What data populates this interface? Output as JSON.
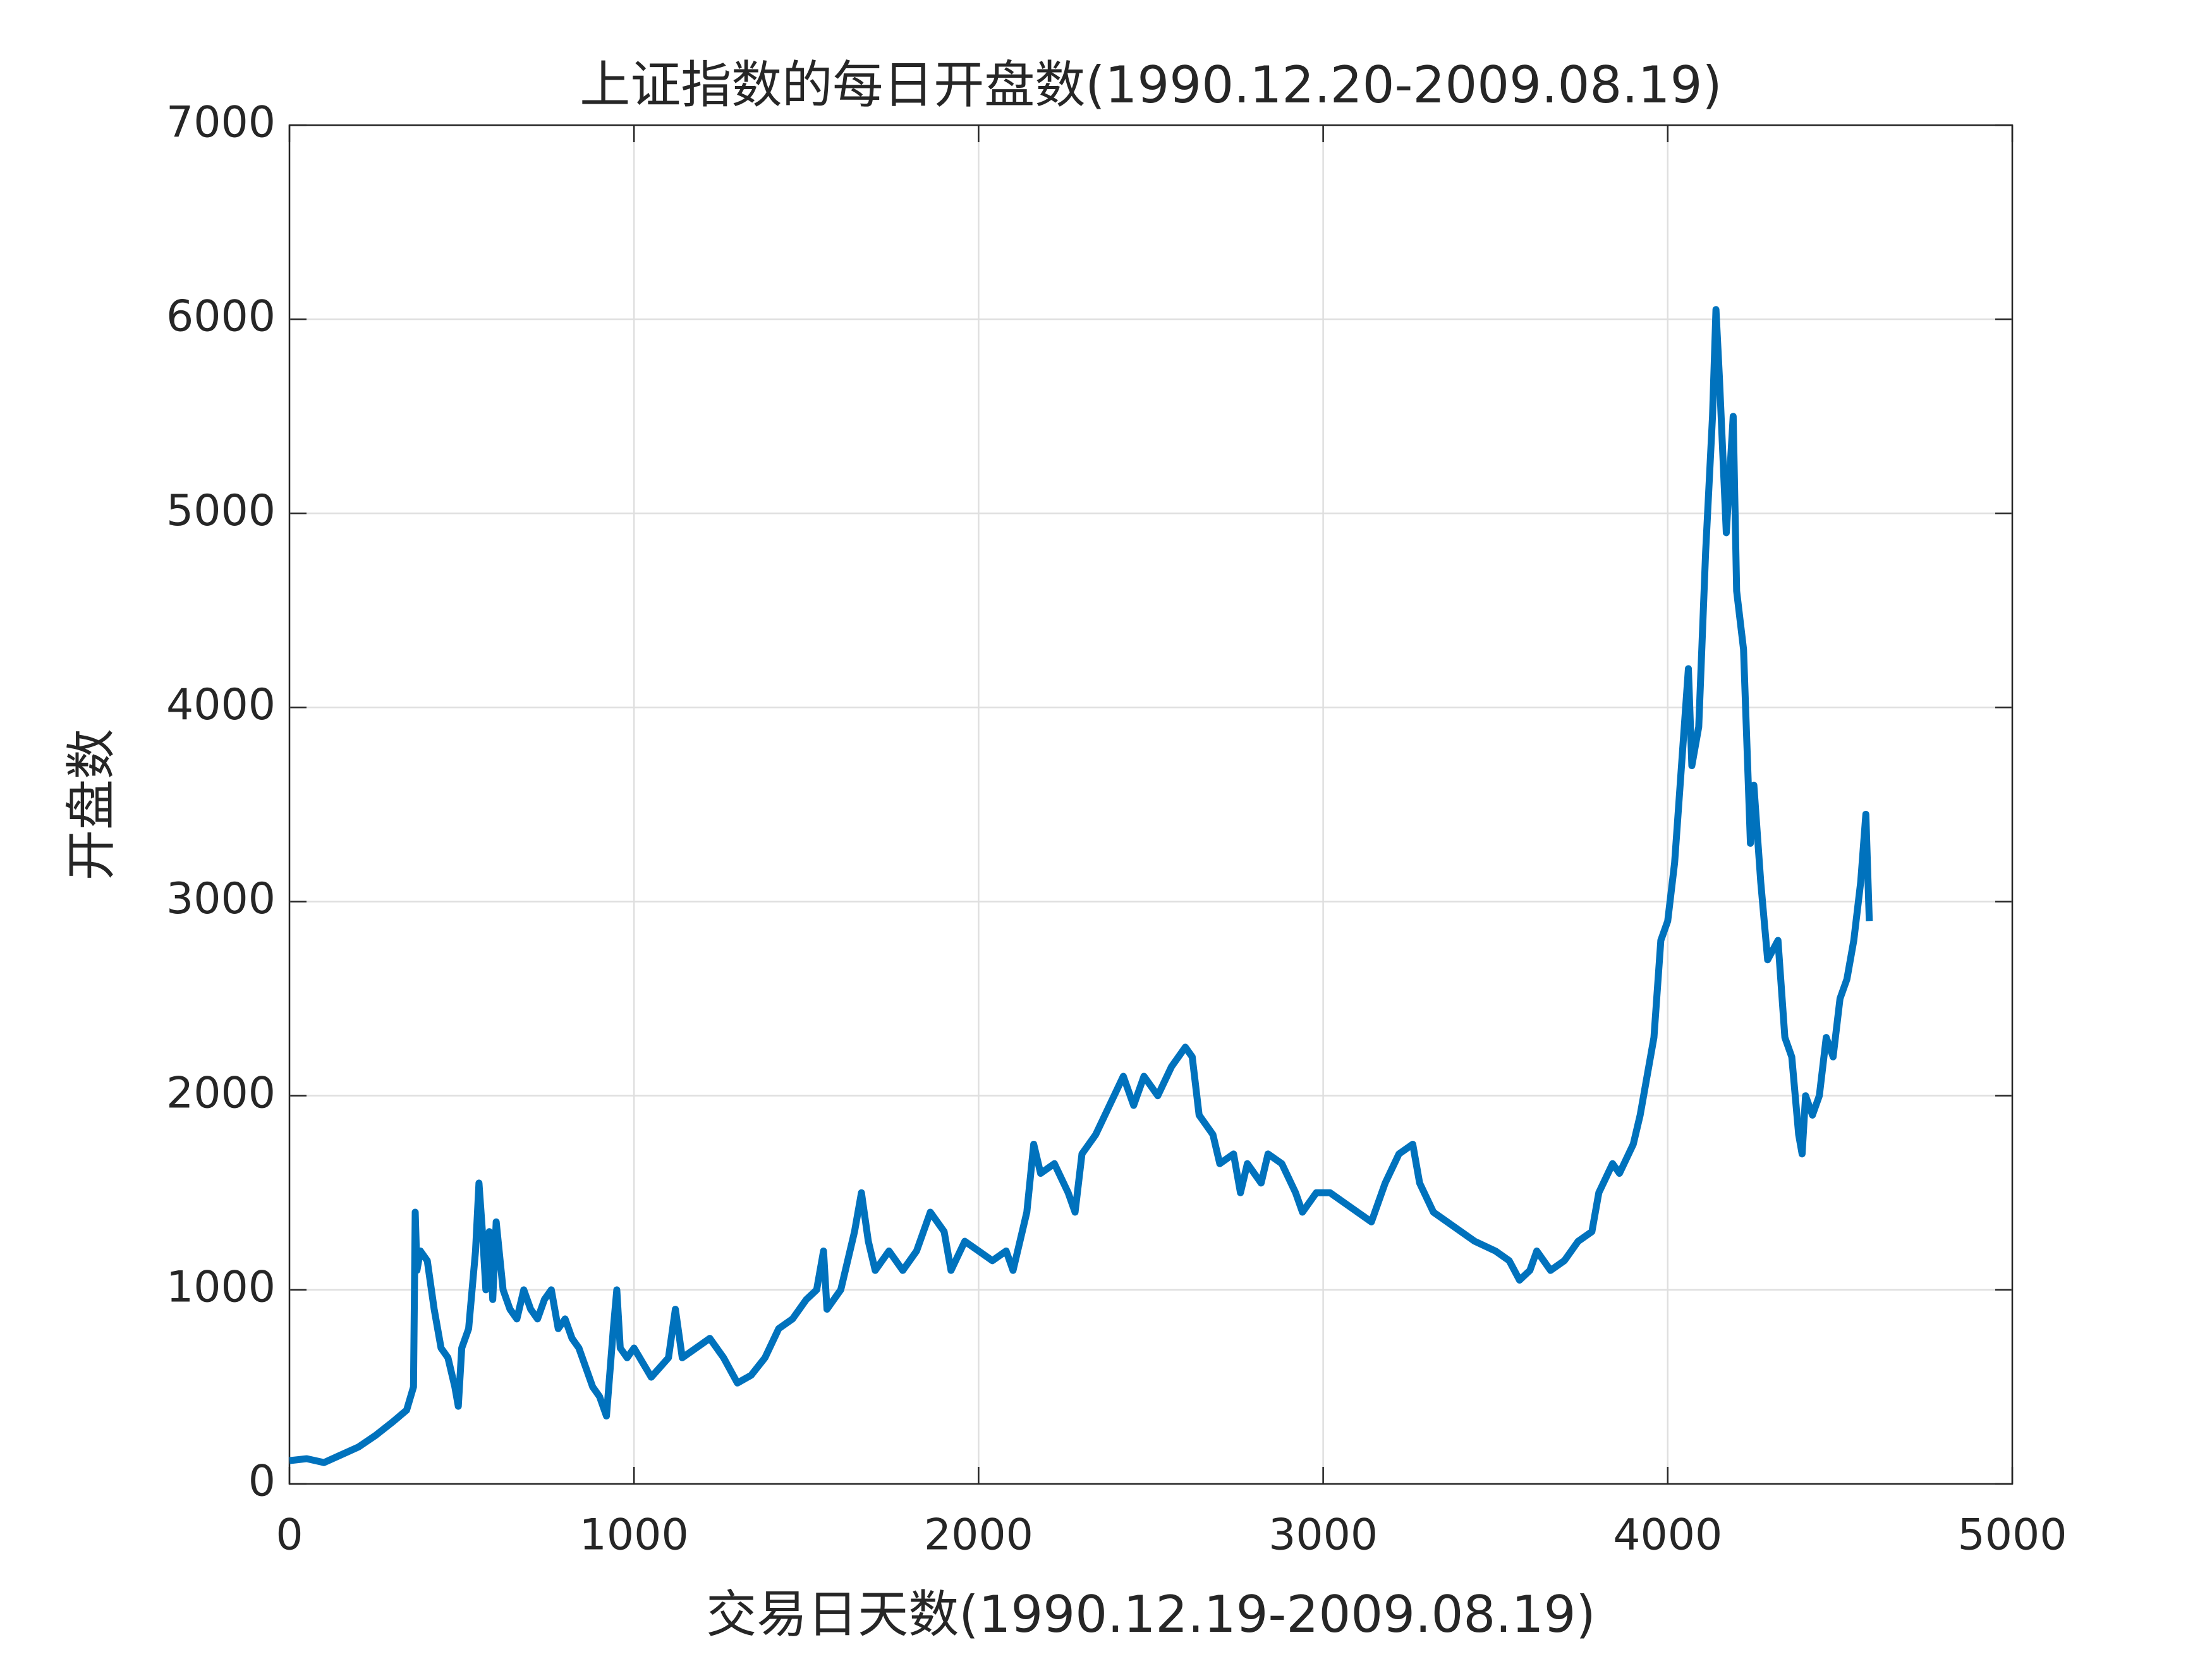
{
  "chart_data": {
    "type": "line",
    "title": "上证指数的每日开盘数(1990.12.20-2009.08.19)",
    "x_label": "交易日天数(1990.12.19-2009.08.19)",
    "y_label": "开盘数",
    "x": [
      0,
      50,
      100,
      150,
      200,
      250,
      300,
      340,
      360,
      365,
      370,
      380,
      400,
      420,
      440,
      460,
      480,
      490,
      500,
      520,
      540,
      550,
      560,
      570,
      580,
      590,
      600,
      620,
      640,
      660,
      680,
      700,
      720,
      740,
      760,
      780,
      800,
      820,
      840,
      860,
      880,
      900,
      920,
      940,
      950,
      960,
      980,
      1000,
      1050,
      1100,
      1120,
      1140,
      1180,
      1220,
      1260,
      1300,
      1340,
      1380,
      1420,
      1460,
      1500,
      1530,
      1550,
      1560,
      1600,
      1640,
      1660,
      1680,
      1700,
      1740,
      1780,
      1820,
      1860,
      1900,
      1920,
      1960,
      2000,
      2040,
      2080,
      2100,
      2140,
      2160,
      2180,
      2220,
      2260,
      2280,
      2300,
      2340,
      2380,
      2420,
      2450,
      2480,
      2520,
      2560,
      2600,
      2620,
      2640,
      2680,
      2700,
      2740,
      2760,
      2780,
      2820,
      2840,
      2880,
      2920,
      2940,
      2980,
      3020,
      3060,
      3100,
      3140,
      3180,
      3220,
      3260,
      3280,
      3320,
      3360,
      3400,
      3440,
      3500,
      3540,
      3570,
      3600,
      3620,
      3660,
      3700,
      3740,
      3780,
      3800,
      3840,
      3860,
      3900,
      3920,
      3960,
      3980,
      4000,
      4020,
      4040,
      4060,
      4070,
      4090,
      4110,
      4130,
      4140,
      4150,
      4160,
      4170,
      4190,
      4200,
      4220,
      4230,
      4240,
      4250,
      4270,
      4290,
      4320,
      4340,
      4360,
      4380,
      4390,
      4400,
      4420,
      4440,
      4460,
      4480,
      4500,
      4520,
      4540,
      4560,
      4575,
      4585
    ],
    "series": [
      {
        "color": "#0072BD",
        "values": [
          120,
          130,
          110,
          150,
          190,
          250,
          320,
          380,
          500,
          1400,
          1100,
          1200,
          1150,
          900,
          700,
          650,
          500,
          400,
          700,
          800,
          1200,
          1550,
          1300,
          1000,
          1300,
          950,
          1350,
          1000,
          900,
          850,
          1000,
          900,
          850,
          950,
          1000,
          800,
          850,
          750,
          700,
          600,
          500,
          450,
          350,
          800,
          1000,
          700,
          650,
          700,
          550,
          650,
          900,
          650,
          700,
          750,
          650,
          520,
          560,
          650,
          800,
          850,
          950,
          1000,
          1200,
          900,
          1000,
          1300,
          1500,
          1250,
          1100,
          1200,
          1100,
          1200,
          1400,
          1300,
          1100,
          1250,
          1200,
          1150,
          1200,
          1100,
          1400,
          1750,
          1600,
          1650,
          1500,
          1400,
          1700,
          1800,
          1950,
          2100,
          1950,
          2100,
          2000,
          2150,
          2250,
          2200,
          1900,
          1800,
          1650,
          1700,
          1500,
          1650,
          1550,
          1700,
          1650,
          1500,
          1400,
          1500,
          1500,
          1450,
          1400,
          1350,
          1550,
          1700,
          1750,
          1550,
          1400,
          1350,
          1300,
          1250,
          1200,
          1150,
          1050,
          1100,
          1200,
          1100,
          1150,
          1250,
          1300,
          1500,
          1650,
          1600,
          1750,
          1900,
          2300,
          2800,
          2900,
          3200,
          3700,
          4200,
          3700,
          3900,
          4800,
          5500,
          6050,
          5700,
          5300,
          4900,
          5500,
          4600,
          4300,
          3800,
          3300,
          3600,
          3100,
          2700,
          2800,
          2300,
          2200,
          1800,
          1700,
          2000,
          1900,
          2000,
          2300,
          2200,
          2500,
          2600,
          2800,
          3100,
          3450,
          2900
        ]
      }
    ],
    "xlim": [
      0,
      5000
    ],
    "xticks": [
      0,
      1000,
      2000,
      3000,
      4000,
      5000
    ],
    "ylim": [
      0,
      7000
    ],
    "yticks": [
      0,
      1000,
      2000,
      3000,
      4000,
      5000,
      6000,
      7000
    ],
    "grid": true
  }
}
